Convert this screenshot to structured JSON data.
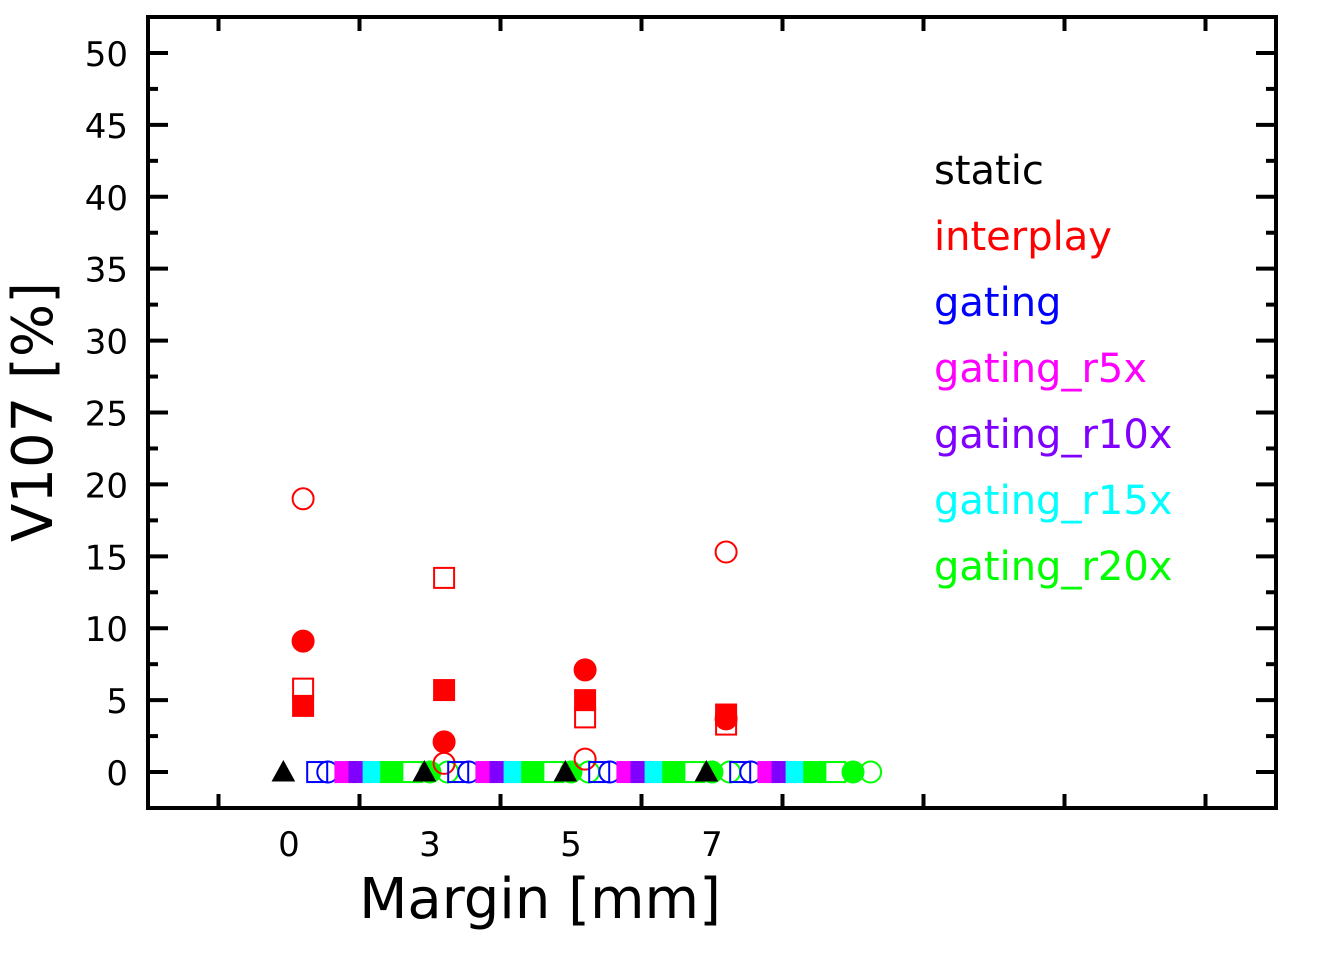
{
  "chart_data": {
    "type": "scatter",
    "xlabel": "Margin [mm]",
    "ylabel": "V107 [%]",
    "ylim": [
      -2.5,
      52.5
    ],
    "xlim": [
      -2,
      14
    ],
    "x_tick_labels": [
      "0",
      "3",
      "5",
      "7"
    ],
    "y_tick_labels": [
      "0",
      "5",
      "10",
      "15",
      "20",
      "25",
      "30",
      "35",
      "40",
      "45",
      "50"
    ],
    "legend": {
      "placement": "top-right",
      "entries": [
        {
          "label": "static",
          "color": "#000000"
        },
        {
          "label": "interplay",
          "color": "#ff0000"
        },
        {
          "label": "gating",
          "color": "#0000ff"
        },
        {
          "label": "gating_r5x",
          "color": "#ff00ff"
        },
        {
          "label": "gating_r10x",
          "color": "#7f00ff"
        },
        {
          "label": "gating_r15x",
          "color": "#00ffff"
        },
        {
          "label": "gating_r20x",
          "color": "#00ff00"
        }
      ]
    },
    "points": [
      {
        "x": -0.08,
        "y": 0,
        "color": "#000000",
        "marker": "triangle-filled"
      },
      {
        "x": 0.2,
        "y": 19.0,
        "color": "#ff0000",
        "marker": "circle-open"
      },
      {
        "x": 0.2,
        "y": 9.1,
        "color": "#ff0000",
        "marker": "circle-filled"
      },
      {
        "x": 0.2,
        "y": 5.8,
        "color": "#ff0000",
        "marker": "square-open"
      },
      {
        "x": 0.2,
        "y": 4.6,
        "color": "#ff0000",
        "marker": "square-filled"
      },
      {
        "x": 0.4,
        "y": 0,
        "color": "#0000ff",
        "marker": "square-open"
      },
      {
        "x": 0.55,
        "y": 0,
        "color": "#0000ff",
        "marker": "circle-open"
      },
      {
        "x": 0.8,
        "y": 0,
        "color": "#ff00ff",
        "marker": "square-filled"
      },
      {
        "x": 1.0,
        "y": 0,
        "color": "#7f00ff",
        "marker": "square-filled"
      },
      {
        "x": 1.2,
        "y": 0,
        "color": "#00ffff",
        "marker": "square-filled"
      },
      {
        "x": 1.45,
        "y": 0,
        "color": "#00ff00",
        "marker": "square-filled"
      },
      {
        "x": 1.75,
        "y": 0,
        "color": "#00ff00",
        "marker": "square-open"
      },
      {
        "x": 2.0,
        "y": 0,
        "color": "#00ff00",
        "marker": "circle-filled"
      },
      {
        "x": 2.25,
        "y": 0,
        "color": "#00ff00",
        "marker": "circle-open"
      },
      {
        "x": 1.92,
        "y": 0,
        "color": "#000000",
        "marker": "triangle-filled"
      },
      {
        "x": 2.2,
        "y": 13.5,
        "color": "#ff0000",
        "marker": "square-open"
      },
      {
        "x": 2.2,
        "y": 5.7,
        "color": "#ff0000",
        "marker": "square-filled"
      },
      {
        "x": 2.2,
        "y": 2.1,
        "color": "#ff0000",
        "marker": "circle-filled"
      },
      {
        "x": 2.2,
        "y": 0.6,
        "color": "#ff0000",
        "marker": "circle-open"
      },
      {
        "x": 2.4,
        "y": 0,
        "color": "#0000ff",
        "marker": "square-open"
      },
      {
        "x": 2.55,
        "y": 0,
        "color": "#0000ff",
        "marker": "circle-open"
      },
      {
        "x": 2.8,
        "y": 0,
        "color": "#ff00ff",
        "marker": "square-filled"
      },
      {
        "x": 3.0,
        "y": 0,
        "color": "#7f00ff",
        "marker": "square-filled"
      },
      {
        "x": 3.2,
        "y": 0,
        "color": "#00ffff",
        "marker": "square-filled"
      },
      {
        "x": 3.45,
        "y": 0,
        "color": "#00ff00",
        "marker": "square-filled"
      },
      {
        "x": 3.75,
        "y": 0,
        "color": "#00ff00",
        "marker": "square-open"
      },
      {
        "x": 4.0,
        "y": 0,
        "color": "#00ff00",
        "marker": "circle-filled"
      },
      {
        "x": 4.25,
        "y": 0,
        "color": "#00ff00",
        "marker": "circle-open"
      },
      {
        "x": 3.92,
        "y": 0,
        "color": "#000000",
        "marker": "triangle-filled"
      },
      {
        "x": 4.2,
        "y": 7.1,
        "color": "#ff0000",
        "marker": "circle-filled"
      },
      {
        "x": 4.2,
        "y": 5.0,
        "color": "#ff0000",
        "marker": "square-filled"
      },
      {
        "x": 4.2,
        "y": 3.8,
        "color": "#ff0000",
        "marker": "square-open"
      },
      {
        "x": 4.2,
        "y": 0.9,
        "color": "#ff0000",
        "marker": "circle-open"
      },
      {
        "x": 4.4,
        "y": 0,
        "color": "#0000ff",
        "marker": "square-open"
      },
      {
        "x": 4.55,
        "y": 0,
        "color": "#0000ff",
        "marker": "circle-open"
      },
      {
        "x": 4.8,
        "y": 0,
        "color": "#ff00ff",
        "marker": "square-filled"
      },
      {
        "x": 5.0,
        "y": 0,
        "color": "#7f00ff",
        "marker": "square-filled"
      },
      {
        "x": 5.2,
        "y": 0,
        "color": "#00ffff",
        "marker": "square-filled"
      },
      {
        "x": 5.45,
        "y": 0,
        "color": "#00ff00",
        "marker": "square-filled"
      },
      {
        "x": 5.75,
        "y": 0,
        "color": "#00ff00",
        "marker": "square-open"
      },
      {
        "x": 6.0,
        "y": 0,
        "color": "#00ff00",
        "marker": "circle-filled"
      },
      {
        "x": 6.25,
        "y": 0,
        "color": "#00ff00",
        "marker": "circle-open"
      },
      {
        "x": 5.92,
        "y": 0,
        "color": "#000000",
        "marker": "triangle-filled"
      },
      {
        "x": 6.2,
        "y": 15.3,
        "color": "#ff0000",
        "marker": "circle-open"
      },
      {
        "x": 6.2,
        "y": 4.0,
        "color": "#ff0000",
        "marker": "square-filled"
      },
      {
        "x": 6.2,
        "y": 3.7,
        "color": "#ff0000",
        "marker": "circle-filled"
      },
      {
        "x": 6.2,
        "y": 3.3,
        "color": "#ff0000",
        "marker": "square-open"
      },
      {
        "x": 6.4,
        "y": 0,
        "color": "#0000ff",
        "marker": "square-open"
      },
      {
        "x": 6.55,
        "y": 0,
        "color": "#0000ff",
        "marker": "circle-open"
      },
      {
        "x": 6.8,
        "y": 0,
        "color": "#ff00ff",
        "marker": "square-filled"
      },
      {
        "x": 7.0,
        "y": 0,
        "color": "#7f00ff",
        "marker": "square-filled"
      },
      {
        "x": 7.2,
        "y": 0,
        "color": "#00ffff",
        "marker": "square-filled"
      },
      {
        "x": 7.45,
        "y": 0,
        "color": "#00ff00",
        "marker": "square-filled"
      },
      {
        "x": 7.75,
        "y": 0,
        "color": "#00ff00",
        "marker": "square-open"
      },
      {
        "x": 8.0,
        "y": 0,
        "color": "#00ff00",
        "marker": "circle-filled"
      },
      {
        "x": 8.25,
        "y": 0,
        "color": "#00ff00",
        "marker": "circle-open"
      }
    ]
  }
}
